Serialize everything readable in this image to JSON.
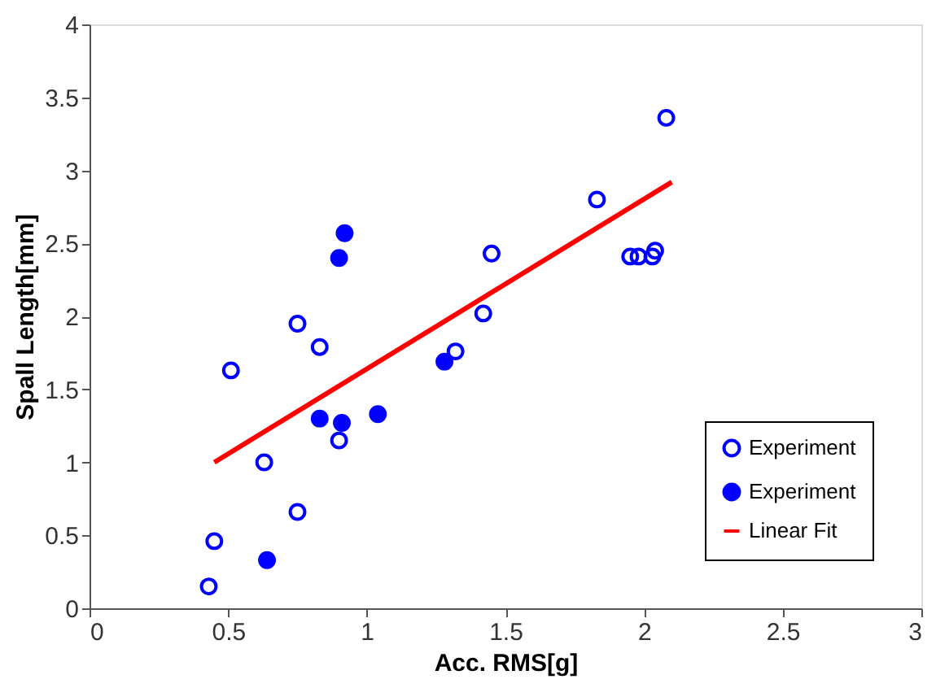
{
  "chart_data": {
    "type": "scatter",
    "xlabel": "Acc. RMS[g]",
    "ylabel": "Spall Length[mm]",
    "xlim": [
      0,
      3
    ],
    "ylim": [
      0,
      4
    ],
    "xticks": [
      0,
      0.5,
      1,
      1.5,
      2,
      2.5,
      3
    ],
    "yticks": [
      0,
      0.5,
      1,
      1.5,
      2,
      2.5,
      3,
      3.5,
      4
    ],
    "grid": false,
    "legend": "bottom right",
    "marker": "circle",
    "series": [
      {
        "name": "Experiment",
        "color": "#0000ff",
        "x": [
          0.43,
          0.45,
          0.51,
          0.63,
          0.75,
          0.75,
          0.83,
          0.9,
          1.32,
          1.42,
          1.45,
          1.83,
          1.95,
          1.98,
          2.03,
          2.04,
          2.08
        ],
        "values": [
          0.15,
          0.46,
          1.63,
          1.0,
          0.66,
          1.95,
          1.79,
          1.15,
          1.76,
          2.02,
          2.43,
          2.8,
          2.41,
          2.41,
          2.41,
          2.45,
          3.36
        ]
      },
      {
        "name": "Experiment",
        "color": "#0000ff",
        "x": [
          0.64,
          0.83,
          0.9,
          0.91,
          0.92,
          1.04,
          1.28
        ],
        "values": [
          0.33,
          1.3,
          2.4,
          1.27,
          2.57,
          1.33,
          1.69
        ]
      },
      {
        "name": "Linear Fit",
        "type": "line",
        "color": "#ff0000",
        "marker": "none",
        "line_style": "solid",
        "x": [
          0.45,
          2.1
        ],
        "values": [
          1.0,
          2.92
        ]
      }
    ]
  }
}
